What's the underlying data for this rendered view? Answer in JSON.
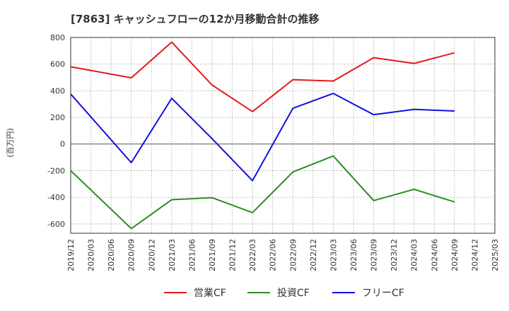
{
  "chart_data": {
    "type": "line",
    "title": "[7863]  キャッシュフローの12か月移動合計の推移",
    "ylabel": "(百万円)",
    "xlabel": "",
    "ylim": [
      -670,
      800
    ],
    "yticks": [
      800,
      600,
      400,
      200,
      0,
      -200,
      -400,
      -600
    ],
    "ytick_labels": [
      "800",
      "600",
      "400",
      "200",
      "0",
      "-200",
      "-400",
      "-600"
    ],
    "x_categories": [
      "2019/12",
      "2020/03",
      "2020/06",
      "2020/09",
      "2020/12",
      "2021/03",
      "2021/06",
      "2021/09",
      "2021/12",
      "2022/03",
      "2022/06",
      "2022/09",
      "2022/12",
      "2023/03",
      "2023/06",
      "2023/09",
      "2023/12",
      "2024/03",
      "2024/06",
      "2024/09",
      "2024/12",
      "2025/03"
    ],
    "grid": true,
    "legend_position": "bottom",
    "series": [
      {
        "name": "営業CF",
        "color": "#e31a1c",
        "x": [
          "2019/12",
          "2020/09",
          "2021/03",
          "2021/09",
          "2022/03",
          "2022/09",
          "2023/03",
          "2023/09",
          "2024/03",
          "2024/09"
        ],
        "values": [
          580,
          497,
          765,
          443,
          243,
          483,
          473,
          648,
          605,
          685
        ]
      },
      {
        "name": "投資CF",
        "color": "#2e8b23",
        "x": [
          "2019/12",
          "2020/09",
          "2021/03",
          "2021/09",
          "2022/03",
          "2022/09",
          "2023/03",
          "2023/09",
          "2024/03",
          "2024/09"
        ],
        "values": [
          -200,
          -635,
          -418,
          -403,
          -515,
          -210,
          -90,
          -425,
          -340,
          -435
        ]
      },
      {
        "name": "フリーCF",
        "color": "#1010e0",
        "x": [
          "2019/12",
          "2020/09",
          "2021/03",
          "2021/09",
          "2022/03",
          "2022/09",
          "2023/03",
          "2023/09",
          "2024/03",
          "2024/09"
        ],
        "values": [
          375,
          -140,
          343,
          40,
          -275,
          268,
          380,
          220,
          260,
          248
        ]
      }
    ]
  }
}
